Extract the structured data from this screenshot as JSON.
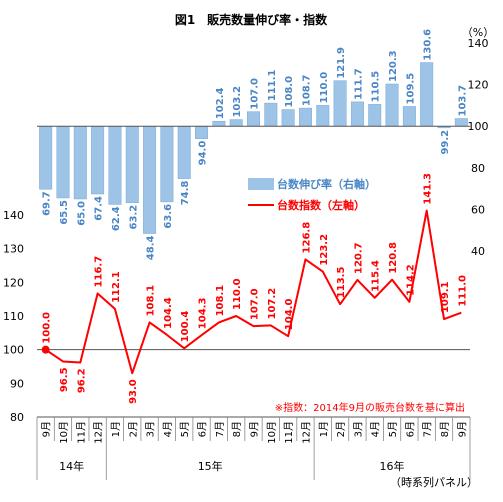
{
  "chart_data": {
    "type": "bar+line",
    "title": "図1　販売数量伸び率・指数",
    "right_axis_unit": "（%）",
    "right_axis": {
      "min": 0,
      "max": 140,
      "ticks": [
        40,
        60,
        80,
        100,
        120,
        140
      ],
      "tick_labels": [
        "40",
        "60",
        "80",
        "100",
        "120",
        "140"
      ]
    },
    "left_axis": {
      "min": 80,
      "max": 140,
      "ticks": [
        80,
        90,
        100,
        110,
        120,
        130,
        140
      ],
      "tick_labels": [
        "80",
        "90",
        "100",
        "110",
        "120",
        "130",
        "140"
      ]
    },
    "bar_baseline": 100,
    "line_baseline": 100,
    "months": [
      "9月",
      "10月",
      "11月",
      "12月",
      "1月",
      "2月",
      "3月",
      "4月",
      "5月",
      "6月",
      "7月",
      "8月",
      "9月",
      "10月",
      "11月",
      "12月",
      "1月",
      "2月",
      "3月",
      "4月",
      "5月",
      "6月",
      "7月",
      "8月",
      "9月"
    ],
    "year_groups": [
      {
        "label": "14年",
        "start": 0,
        "end": 3
      },
      {
        "label": "15年",
        "start": 4,
        "end": 15
      },
      {
        "label": "16年",
        "start": 16,
        "end": 24
      }
    ],
    "series": [
      {
        "name": "台数伸び率（右軸）",
        "axis": "right",
        "kind": "bar",
        "color": "#9dc3e6",
        "label_color": "#4a86c5",
        "values": [
          69.7,
          65.5,
          65.0,
          67.4,
          62.4,
          63.2,
          48.4,
          63.6,
          74.8,
          94.0,
          102.4,
          103.2,
          107.0,
          111.1,
          108.0,
          108.7,
          110.0,
          121.9,
          111.7,
          110.5,
          120.3,
          109.5,
          130.6,
          99.2,
          103.7
        ],
        "value_labels": [
          "69.7",
          "65.5",
          "65.0",
          "67.4",
          "62.4",
          "63.2",
          "48.4",
          "63.6",
          "74.8",
          "94.0",
          "102.4",
          "103.2",
          "107.0",
          "111.1",
          "108.0",
          "108.7",
          "110.0",
          "121.9",
          "111.7",
          "110.5",
          "120.3",
          "109.5",
          "130.6",
          "99.2",
          "103.7"
        ]
      },
      {
        "name": "台数指数（左軸）",
        "axis": "left",
        "kind": "line",
        "color": "#ff0000",
        "values": [
          100.0,
          96.5,
          96.2,
          116.7,
          112.1,
          93.0,
          108.1,
          104.4,
          100.4,
          104.3,
          108.1,
          110.0,
          107.0,
          107.2,
          104.0,
          126.8,
          123.2,
          113.5,
          120.7,
          115.4,
          120.8,
          114.2,
          141.3,
          109.1,
          111.0
        ],
        "value_labels": [
          "100.0",
          "96.5",
          "96.2",
          "116.7",
          "112.1",
          "93.0",
          "108.1",
          "104.4",
          "100.4",
          "104.3",
          "108.1",
          "110.0",
          "107.0",
          "107.2",
          "104.0",
          "126.8",
          "123.2",
          "113.5",
          "120.7",
          "115.4",
          "120.8",
          "114.2",
          "141.3",
          "109.1",
          "111.0"
        ]
      }
    ],
    "note": "※指数：2014年9月の販売台数を基に算出",
    "footer": "（時系列パネル）"
  }
}
